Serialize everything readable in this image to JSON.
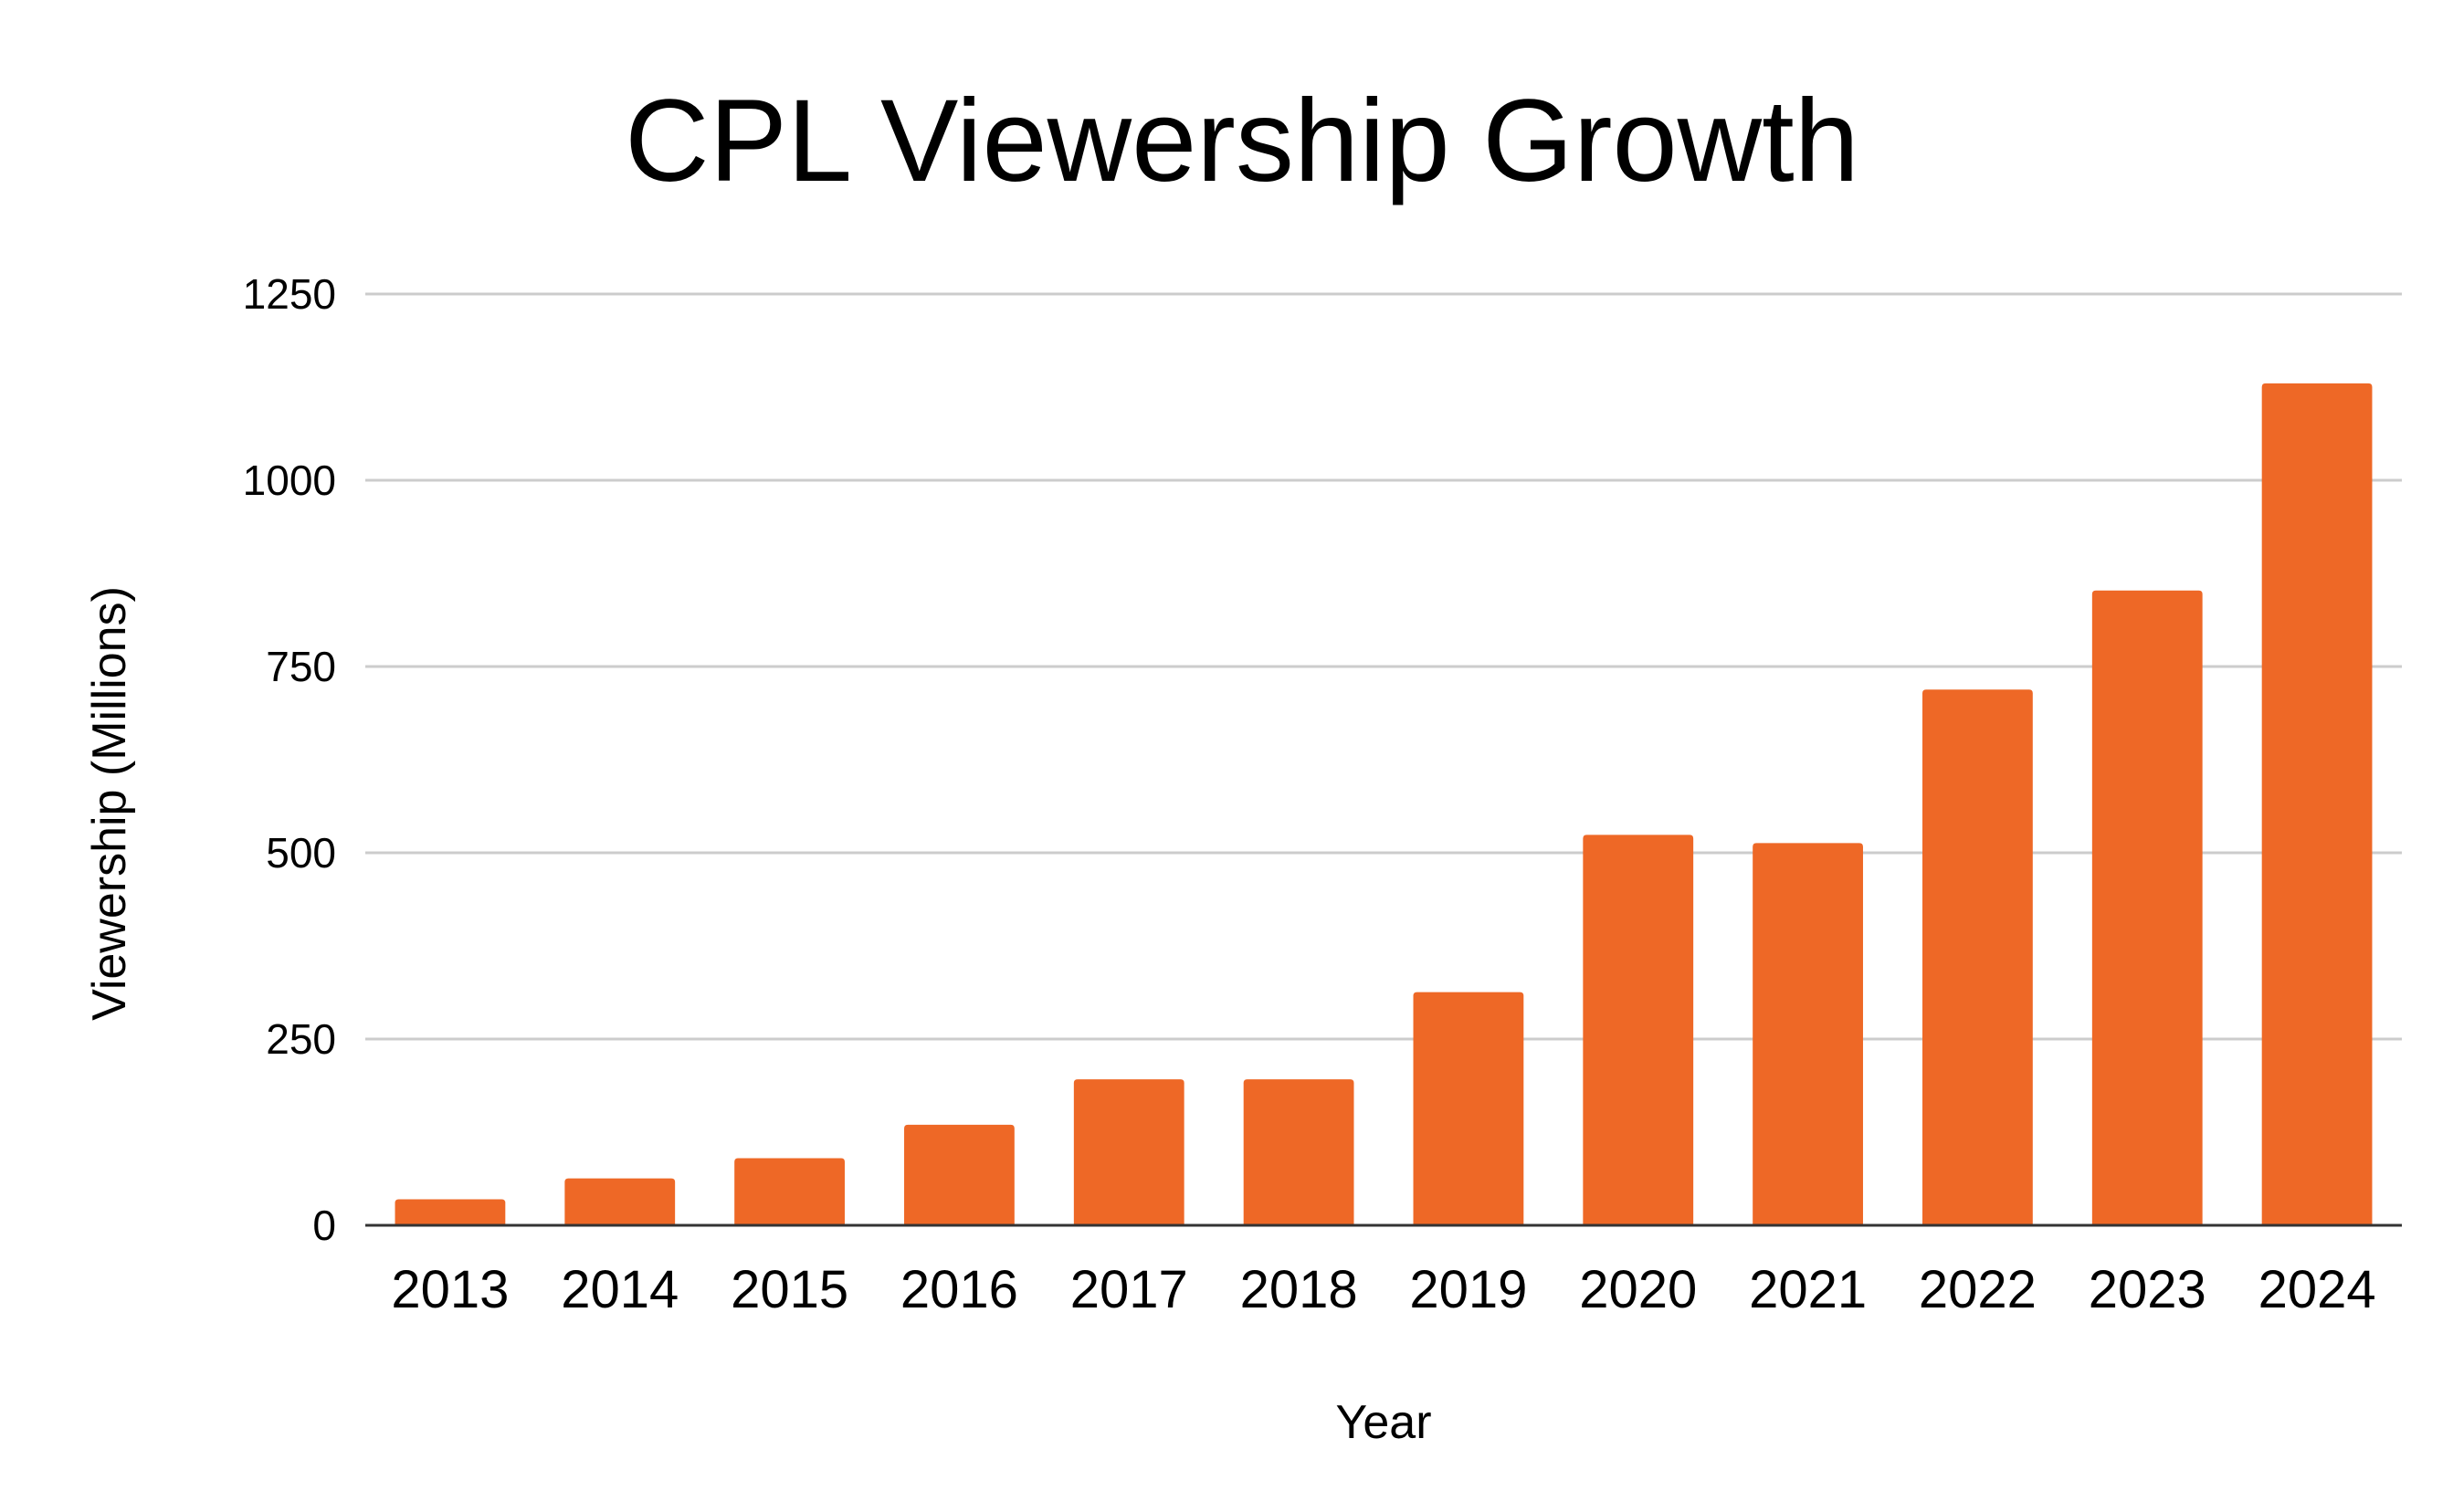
{
  "chart_data": {
    "type": "bar",
    "title": "CPL Viewership Growth",
    "xlabel": "Year",
    "ylabel": "Viewership (Millions)",
    "categories": [
      "2013",
      "2014",
      "2015",
      "2016",
      "2017",
      "2018",
      "2019",
      "2020",
      "2021",
      "2022",
      "2023",
      "2024"
    ],
    "values": [
      35,
      63,
      90,
      135,
      196,
      196,
      313,
      524,
      513,
      719,
      852,
      1130
    ],
    "ylim": [
      0,
      1250
    ],
    "yticks": [
      "0",
      "250",
      "500",
      "750",
      "1000",
      "1250"
    ],
    "grid": true,
    "legend": "none",
    "colors": {
      "bar": "#EE6826",
      "grid": "#CCCCCC",
      "baseline": "#333333"
    }
  }
}
